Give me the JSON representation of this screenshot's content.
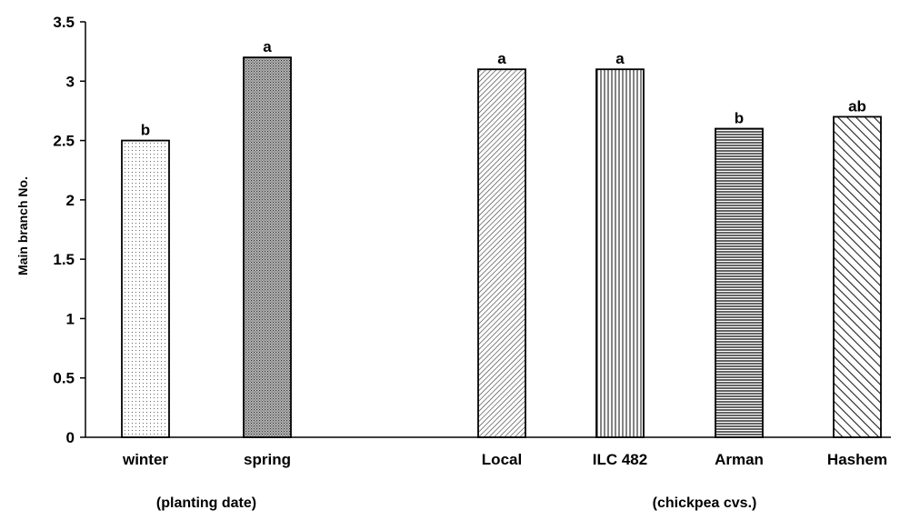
{
  "chart_data": {
    "type": "bar",
    "title": "",
    "xlabel": "",
    "ylabel": "Main branch No.",
    "ylim": [
      0,
      3.5
    ],
    "yticks": [
      "0",
      "0.5",
      "1",
      "1.5",
      "2",
      "2.5",
      "3",
      "3.5"
    ],
    "grid": false,
    "categories": [
      "winter",
      "spring",
      "Local",
      "ILC 482",
      "Arman",
      "Hashem"
    ],
    "values": [
      2.5,
      3.2,
      3.1,
      3.1,
      2.6,
      2.7
    ],
    "significance_letters": [
      "b",
      "a",
      "a",
      "a",
      "b",
      "ab"
    ],
    "fill_patterns": [
      "dots-light",
      "dots-dense",
      "diagonal-down-fine",
      "vertical-lines",
      "horizontal-lines",
      "diagonal-up-wide"
    ],
    "groups": [
      {
        "label": "(planting date)",
        "categories": [
          "winter",
          "spring"
        ]
      },
      {
        "label": "(chickpea cvs.)",
        "categories": [
          "Local",
          "ILC 482",
          "Arman",
          "Hashem"
        ]
      }
    ],
    "colors": {
      "bar_outline": "#000000",
      "axis": "#000000",
      "background": "#ffffff"
    }
  }
}
